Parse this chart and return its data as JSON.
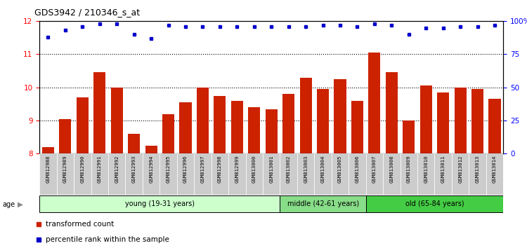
{
  "title": "GDS3942 / 210346_s_at",
  "samples": [
    "GSM812988",
    "GSM812989",
    "GSM812990",
    "GSM812991",
    "GSM812992",
    "GSM812993",
    "GSM812994",
    "GSM812995",
    "GSM812996",
    "GSM812997",
    "GSM812998",
    "GSM812999",
    "GSM813000",
    "GSM813001",
    "GSM813002",
    "GSM813003",
    "GSM813004",
    "GSM813005",
    "GSM813006",
    "GSM813007",
    "GSM813008",
    "GSM813009",
    "GSM813010",
    "GSM813011",
    "GSM813012",
    "GSM813013",
    "GSM813014"
  ],
  "bar_values": [
    8.2,
    9.05,
    9.7,
    10.45,
    10.0,
    8.6,
    8.25,
    9.2,
    9.55,
    10.0,
    9.75,
    9.6,
    9.4,
    9.35,
    9.8,
    10.3,
    9.95,
    10.25,
    9.6,
    11.05,
    10.45,
    9.0,
    10.05,
    9.85,
    10.0,
    9.95,
    9.65
  ],
  "percentile_values": [
    88,
    93,
    96,
    98,
    98,
    90,
    87,
    97,
    96,
    96,
    96,
    96,
    96,
    96,
    96,
    96,
    97,
    97,
    96,
    98,
    97,
    90,
    95,
    95,
    96,
    96,
    97
  ],
  "bar_color": "#cc2200",
  "dot_color": "#0000cc",
  "ylim_left": [
    8.0,
    12.0
  ],
  "ylim_right": [
    0,
    100
  ],
  "yticks_left": [
    8,
    9,
    10,
    11,
    12
  ],
  "yticks_right": [
    0,
    25,
    50,
    75,
    100
  ],
  "ytick_labels_right": [
    "0",
    "25",
    "50",
    "75",
    "100%"
  ],
  "groups": [
    {
      "label": "young (19-31 years)",
      "start": 0,
      "end": 14,
      "color": "#ccffcc"
    },
    {
      "label": "middle (42-61 years)",
      "start": 14,
      "end": 19,
      "color": "#88dd88"
    },
    {
      "label": "old (65-84 years)",
      "start": 19,
      "end": 27,
      "color": "#44cc44"
    }
  ],
  "tick_bg_color": "#cccccc",
  "plot_bg_color": "#ffffff",
  "age_label": "age",
  "legend_items": [
    {
      "label": "transformed count",
      "color": "#cc2200"
    },
    {
      "label": "percentile rank within the sample",
      "color": "#0000cc"
    }
  ]
}
